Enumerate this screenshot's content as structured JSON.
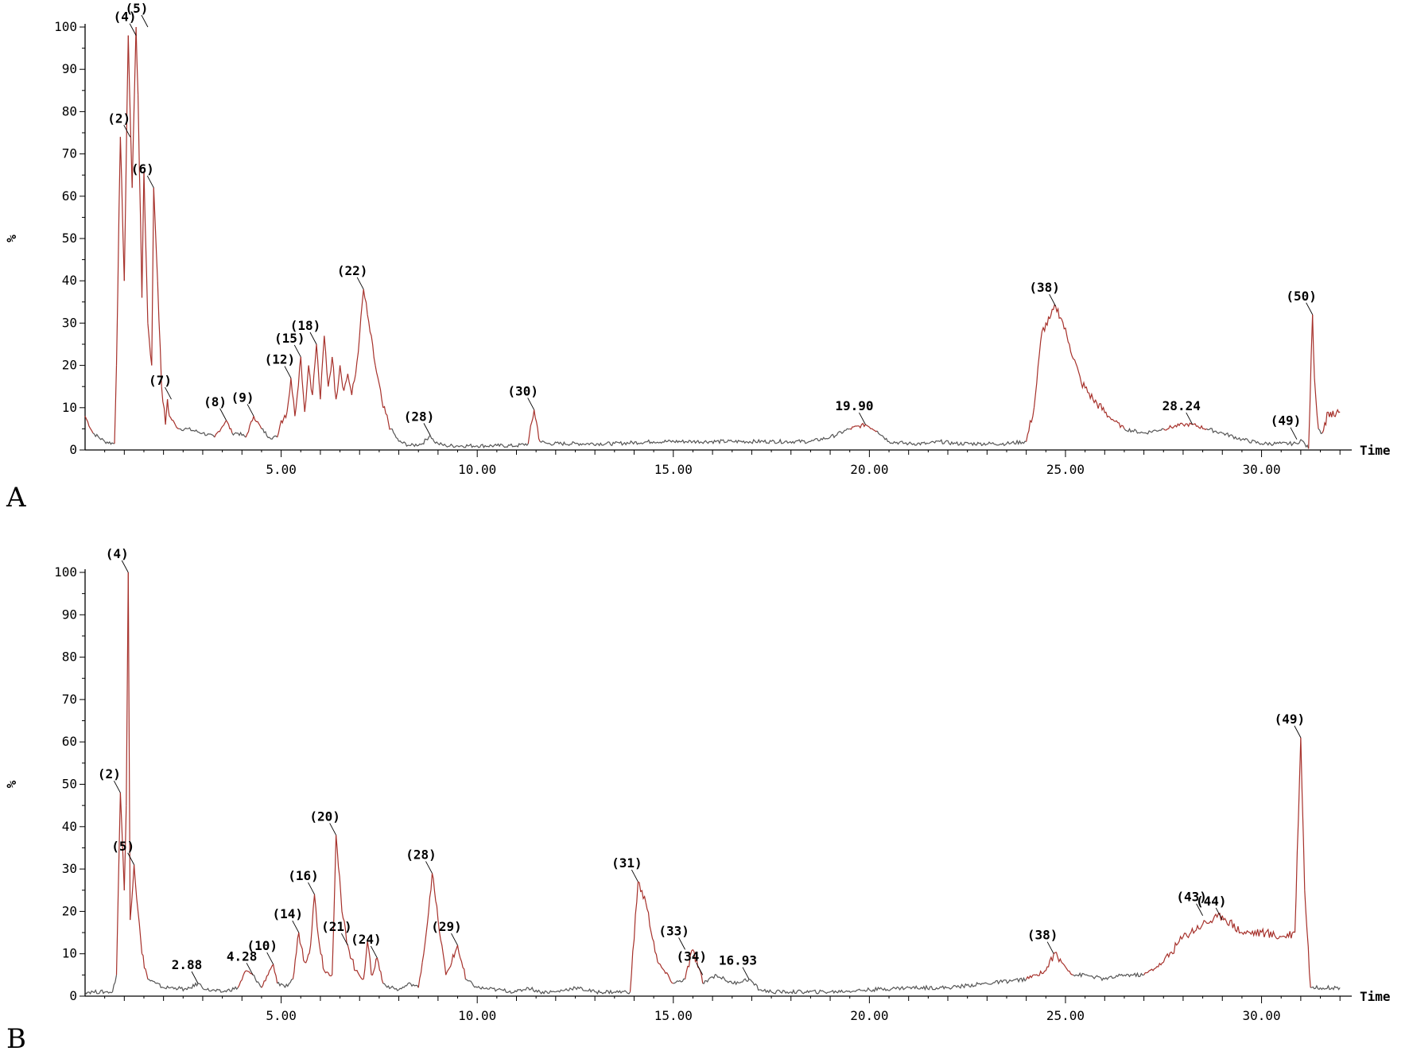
{
  "chart_data": [
    {
      "panel": "A",
      "type": "line",
      "title": "",
      "xlabel": "Time",
      "ylabel": "%",
      "xlim": [
        0,
        32.3
      ],
      "ylim": [
        0,
        100
      ],
      "x_ticks": [
        "5.00",
        "10.00",
        "15.00",
        "20.00",
        "25.00",
        "30.00"
      ],
      "y_ticks": [
        "0",
        "10",
        "20",
        "30",
        "40",
        "50",
        "60",
        "70",
        "80",
        "90",
        "100"
      ],
      "series": [
        {
          "color_peak": "#a6302a",
          "color_base": "#555555",
          "x": [
            0.0,
            0.2,
            0.5,
            0.75,
            0.8,
            0.9,
            1.0,
            1.1,
            1.2,
            1.3,
            1.35,
            1.45,
            1.5,
            1.6,
            1.7,
            1.75,
            1.85,
            1.95,
            2.05,
            2.1,
            2.15,
            2.3,
            2.4,
            2.6,
            3.0,
            3.3,
            3.6,
            3.75,
            3.9,
            4.1,
            4.3,
            4.5,
            4.7,
            4.9,
            5.0,
            5.15,
            5.25,
            5.35,
            5.5,
            5.6,
            5.7,
            5.8,
            5.9,
            6.0,
            6.1,
            6.2,
            6.3,
            6.4,
            6.5,
            6.6,
            6.7,
            6.8,
            6.9,
            7.0,
            7.1,
            7.2,
            7.4,
            7.6,
            7.8,
            8.0,
            8.3,
            8.6,
            8.8,
            8.9,
            9.0,
            9.2,
            9.5,
            10.0,
            10.5,
            11.0,
            11.3,
            11.45,
            11.6,
            11.8,
            12.5,
            13.5,
            14.5,
            15.5,
            16.5,
            17.5,
            18.5,
            19.0,
            19.5,
            19.9,
            20.2,
            20.5,
            21.0,
            21.5,
            21.8,
            22.2,
            22.8,
            23.5,
            24.0,
            24.2,
            24.4,
            24.6,
            24.75,
            24.9,
            25.1,
            25.4,
            25.7,
            26.1,
            26.5,
            27.0,
            27.5,
            28.0,
            28.24,
            28.6,
            29.0,
            29.5,
            30.0,
            30.5,
            30.9,
            31.0,
            31.2,
            31.3,
            31.35,
            31.45,
            31.55,
            31.7,
            31.85,
            32.0
          ],
          "y": [
            8,
            4,
            2,
            1.5,
            20,
            74,
            40,
            98,
            62,
            100,
            84,
            36,
            66,
            30,
            20,
            62,
            40,
            15,
            6,
            12,
            8,
            6,
            5,
            5,
            4,
            3,
            7,
            4,
            4,
            3,
            8,
            5,
            3,
            3,
            7,
            9,
            17,
            8,
            22,
            9,
            20,
            13,
            25,
            12,
            27,
            15,
            22,
            12,
            20,
            14,
            18,
            13,
            18,
            27,
            38,
            32,
            20,
            10,
            5,
            2,
            1,
            1.5,
            3.5,
            2,
            1.5,
            1,
            1,
            1,
            1,
            1,
            1.5,
            9.5,
            2,
            1.5,
            1.5,
            1.5,
            2,
            2,
            2,
            2,
            2,
            3,
            5,
            6,
            4.5,
            2,
            1.5,
            1.5,
            2,
            1.5,
            1.5,
            1.5,
            2,
            10,
            28,
            31,
            34,
            31,
            25,
            16,
            12,
            8,
            5,
            4,
            5,
            6,
            6,
            5,
            4,
            2.5,
            1.5,
            1.5,
            1.5,
            2.5,
            0.3,
            32,
            17,
            5,
            4,
            9,
            8,
            9
          ]
        }
      ],
      "annotations": [
        {
          "label": "(2)",
          "x": 1.15,
          "y": 74
        },
        {
          "label": "(4)",
          "x": 1.3,
          "y": 98
        },
        {
          "label": "(5)",
          "x": 1.6,
          "y": 100
        },
        {
          "label": "(6)",
          "x": 1.75,
          "y": 62
        },
        {
          "label": "(7)",
          "x": 2.2,
          "y": 12
        },
        {
          "label": "(8)",
          "x": 3.6,
          "y": 7
        },
        {
          "label": "(9)",
          "x": 4.3,
          "y": 8
        },
        {
          "label": "(12)",
          "x": 5.25,
          "y": 17
        },
        {
          "label": "(15)",
          "x": 5.5,
          "y": 22
        },
        {
          "label": "(18)",
          "x": 5.9,
          "y": 25
        },
        {
          "label": "(22)",
          "x": 7.1,
          "y": 38
        },
        {
          "label": "(28)",
          "x": 8.8,
          "y": 3.5
        },
        {
          "label": "(30)",
          "x": 11.45,
          "y": 9.5
        },
        {
          "label": "19.90",
          "x": 19.9,
          "y": 6
        },
        {
          "label": "(38)",
          "x": 24.75,
          "y": 34
        },
        {
          "label": "28.24",
          "x": 28.24,
          "y": 6
        },
        {
          "label": "(49)",
          "x": 30.9,
          "y": 2.5
        },
        {
          "label": "(50)",
          "x": 31.3,
          "y": 32
        }
      ]
    },
    {
      "panel": "B",
      "type": "line",
      "title": "",
      "xlabel": "Time",
      "ylabel": "%",
      "xlim": [
        0,
        32.3
      ],
      "ylim": [
        0,
        100
      ],
      "x_ticks": [
        "5.00",
        "10.00",
        "15.00",
        "20.00",
        "25.00",
        "30.00"
      ],
      "y_ticks": [
        "0",
        "10",
        "20",
        "30",
        "40",
        "50",
        "60",
        "70",
        "80",
        "90",
        "100"
      ],
      "series": [
        {
          "color_peak": "#a6302a",
          "color_base": "#555555",
          "x": [
            0.0,
            0.2,
            0.5,
            0.7,
            0.8,
            0.9,
            1.0,
            1.05,
            1.1,
            1.15,
            1.25,
            1.35,
            1.45,
            1.6,
            1.8,
            2.0,
            2.3,
            2.6,
            2.88,
            3.1,
            3.5,
            3.9,
            4.1,
            4.28,
            4.5,
            4.7,
            4.8,
            4.9,
            5.1,
            5.3,
            5.45,
            5.6,
            5.75,
            5.85,
            5.95,
            6.1,
            6.3,
            6.4,
            6.55,
            6.7,
            6.9,
            7.1,
            7.2,
            7.3,
            7.45,
            7.6,
            7.8,
            8.0,
            8.3,
            8.5,
            8.6,
            8.7,
            8.85,
            9.0,
            9.2,
            9.35,
            9.5,
            9.7,
            10.0,
            10.5,
            11.0,
            11.3,
            11.6,
            12.0,
            12.5,
            13.0,
            13.5,
            13.9,
            14.1,
            14.3,
            14.6,
            15.0,
            15.3,
            15.5,
            15.75,
            15.9,
            16.1,
            16.5,
            16.93,
            17.2,
            17.5,
            18.0,
            19.0,
            20.0,
            21.0,
            22.0,
            23.0,
            24.0,
            24.5,
            24.7,
            24.9,
            25.2,
            25.5,
            26.0,
            26.5,
            27.0,
            27.5,
            28.0,
            28.5,
            29.0,
            29.5,
            30.0,
            30.5,
            30.85,
            31.0,
            31.1,
            31.25,
            31.5,
            31.8,
            32.0
          ],
          "y": [
            1,
            1,
            1,
            1,
            5,
            48,
            25,
            45,
            100,
            18,
            31,
            20,
            10,
            4,
            3,
            2,
            2,
            1.5,
            3,
            1.5,
            1,
            2,
            6,
            5,
            2,
            6,
            7.5,
            3,
            2,
            4,
            15,
            8,
            12,
            24,
            14,
            6,
            5,
            38,
            20,
            12,
            6,
            4,
            13,
            5,
            9,
            3,
            2,
            1.5,
            3,
            2,
            8,
            15,
            29,
            18,
            5,
            8,
            12,
            4,
            2,
            1.5,
            1,
            2,
            1,
            1,
            2,
            1,
            1,
            1,
            27,
            22,
            8,
            3,
            4,
            11,
            3,
            4,
            5,
            3,
            4,
            1.5,
            1,
            1,
            1,
            1.5,
            2,
            2,
            3,
            4,
            6,
            10,
            8,
            5,
            5,
            4,
            5,
            5,
            8,
            14,
            17,
            19,
            15,
            15,
            14,
            15,
            61,
            25,
            2,
            2,
            2,
            2
          ]
        }
      ],
      "annotations": [
        {
          "label": "(2)",
          "x": 0.9,
          "y": 48
        },
        {
          "label": "(4)",
          "x": 1.1,
          "y": 100
        },
        {
          "label": "(5)",
          "x": 1.25,
          "y": 31
        },
        {
          "label": "2.88",
          "x": 2.88,
          "y": 3
        },
        {
          "label": "4.28",
          "x": 4.28,
          "y": 5
        },
        {
          "label": "(10)",
          "x": 4.8,
          "y": 7.5
        },
        {
          "label": "(14)",
          "x": 5.45,
          "y": 15
        },
        {
          "label": "(16)",
          "x": 5.85,
          "y": 24
        },
        {
          "label": "(20)",
          "x": 6.4,
          "y": 38
        },
        {
          "label": "(21)",
          "x": 6.7,
          "y": 12
        },
        {
          "label": "(24)",
          "x": 7.45,
          "y": 9
        },
        {
          "label": "(28)",
          "x": 8.85,
          "y": 29
        },
        {
          "label": "(29)",
          "x": 9.5,
          "y": 12
        },
        {
          "label": "(31)",
          "x": 14.1,
          "y": 27
        },
        {
          "label": "(33)",
          "x": 15.3,
          "y": 11
        },
        {
          "label": "(34)",
          "x": 15.75,
          "y": 5
        },
        {
          "label": "16.93",
          "x": 16.93,
          "y": 4
        },
        {
          "label": "(38)",
          "x": 24.7,
          "y": 10
        },
        {
          "label": "(43)",
          "x": 28.5,
          "y": 19
        },
        {
          "label": "(44)",
          "x": 29.0,
          "y": 18
        },
        {
          "label": "(49)",
          "x": 31.0,
          "y": 61
        }
      ]
    }
  ]
}
